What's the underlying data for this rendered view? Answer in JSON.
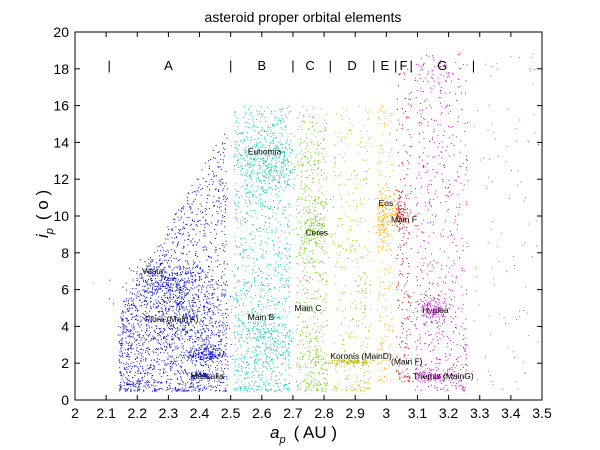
{
  "chart_data": {
    "type": "scatter",
    "title": "asteroid proper orbital elements",
    "xlabel": {
      "main": "a",
      "sub": "p",
      "unit": "( AU )"
    },
    "ylabel": {
      "main": "i",
      "sub": "p",
      "unit": "( o )"
    },
    "xlim": [
      2,
      3.5
    ],
    "ylim": [
      0,
      20
    ],
    "xticks": [
      "2",
      "2.1",
      "2.2",
      "2.3",
      "2.4",
      "2.5",
      "2.6",
      "2.7",
      "2.8",
      "2.9",
      "3",
      "3.1",
      "3.2",
      "3.3",
      "3.4",
      "3.5"
    ],
    "yticks": [
      "0",
      "2",
      "4",
      "6",
      "8",
      "10",
      "12",
      "14",
      "16",
      "18",
      "20"
    ],
    "grid": false,
    "zone_divider_glyph": "|",
    "zone_dividers_x": [
      2.11,
      2.5,
      2.7,
      2.82,
      2.96,
      3.03,
      3.08,
      3.28
    ],
    "zones": [
      {
        "label": "A",
        "x": 2.3
      },
      {
        "label": "B",
        "x": 2.6
      },
      {
        "label": "C",
        "x": 2.755
      },
      {
        "label": "D",
        "x": 2.89
      },
      {
        "label": "E",
        "x": 2.995
      },
      {
        "label": "F",
        "x": 3.055
      },
      {
        "label": "G",
        "x": 3.18
      }
    ],
    "series": [
      {
        "region": [
          2.1,
          2.5
        ],
        "color": "#0000cc"
      },
      {
        "region": [
          2.5,
          2.7
        ],
        "color": "#00c8a8"
      },
      {
        "region": [
          2.7,
          2.82
        ],
        "color": "#66cc00"
      },
      {
        "region": [
          2.82,
          2.96
        ],
        "color": "#bbbb00"
      },
      {
        "region": [
          2.96,
          3.03
        ],
        "color": "#ffaa00"
      },
      {
        "region": [
          3.03,
          3.08
        ],
        "color": "#dd0000"
      },
      {
        "region": [
          3.08,
          3.27
        ],
        "color": "#cc00cc"
      },
      {
        "region": [
          3.27,
          3.5
        ],
        "color": "#7777cc"
      }
    ],
    "annotations": [
      {
        "text": "Vesta",
        "x": 2.215,
        "y": 7.0
      },
      {
        "text": "Flora (Main A)",
        "x": 2.225,
        "y": 4.4
      },
      {
        "text": "Massalia",
        "x": 2.37,
        "y": 1.3
      },
      {
        "text": "Eunomia",
        "x": 2.555,
        "y": 13.5
      },
      {
        "text": "Main B",
        "x": 2.555,
        "y": 4.5
      },
      {
        "text": "Ceres",
        "x": 2.74,
        "y": 9.1
      },
      {
        "text": "Main C",
        "x": 2.705,
        "y": 5.0
      },
      {
        "text": "Koronis (MainD)",
        "x": 2.82,
        "y": 2.4
      },
      {
        "text": "Eos",
        "x": 2.975,
        "y": 10.7
      },
      {
        "text": "Main F",
        "x": 3.015,
        "y": 9.8
      },
      {
        "text": "(Main F)",
        "x": 3.015,
        "y": 2.1
      },
      {
        "text": "Hygiea",
        "x": 3.115,
        "y": 4.9
      },
      {
        "text": "Themis (MainG)",
        "x": 3.085,
        "y": 1.3
      }
    ]
  }
}
